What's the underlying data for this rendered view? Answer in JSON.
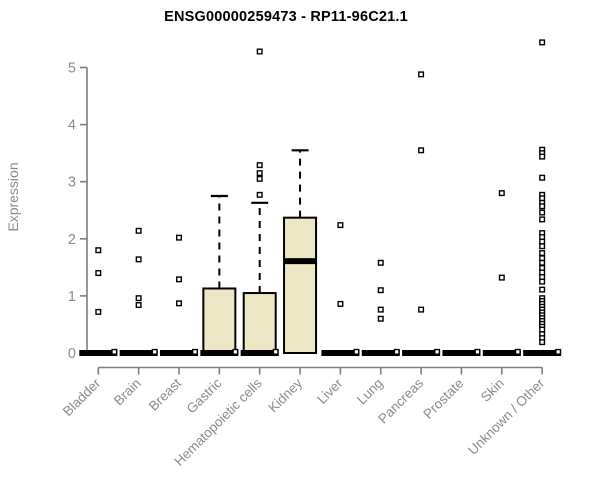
{
  "chart_data": {
    "type": "boxplot",
    "title": "ENSG00000259473 - RP11-96C21.1",
    "xlabel": "",
    "ylabel": "Expression",
    "ylim": [
      0,
      5.5
    ],
    "yticks": [
      0,
      1,
      2,
      3,
      4,
      5
    ],
    "grid": false,
    "legend": "none",
    "colors": {
      "box_fill": "#EDE7C5",
      "box_stroke": "#000000",
      "median": "#000000",
      "axis": "#7d7d7d",
      "tick_label": "#8b8b8b",
      "title": "#000000",
      "background": "#ffffff"
    },
    "categories": [
      "Bladder",
      "Brain",
      "Breast",
      "Gastric",
      "Hematopoietic cells",
      "Kidney",
      "Liver",
      "Lung",
      "Pancreas",
      "Prostate",
      "Skin",
      "Unknown / Other"
    ],
    "series": [
      {
        "category": "Bladder",
        "q1": 0,
        "median": 0,
        "q3": 0,
        "whisker_low": 0,
        "whisker_high": 0,
        "outliers": [
          1.8,
          1.4,
          0.72,
          0.02
        ]
      },
      {
        "category": "Brain",
        "q1": 0,
        "median": 0,
        "q3": 0,
        "whisker_low": 0,
        "whisker_high": 0,
        "outliers": [
          2.14,
          1.64,
          0.96,
          0.84,
          0.02
        ]
      },
      {
        "category": "Breast",
        "q1": 0,
        "median": 0,
        "q3": 0,
        "whisker_low": 0,
        "whisker_high": 0,
        "outliers": [
          2.02,
          1.29,
          0.87,
          0.02
        ]
      },
      {
        "category": "Gastric",
        "q1": 0,
        "median": 0,
        "q3": 1.13,
        "whisker_low": 0,
        "whisker_high": 2.75,
        "outliers": [
          0.02
        ]
      },
      {
        "category": "Hematopoietic cells",
        "q1": 0,
        "median": 0,
        "q3": 1.05,
        "whisker_low": 0,
        "whisker_high": 2.63,
        "outliers": [
          5.28,
          3.29,
          3.15,
          3.05,
          2.77,
          0.02
        ]
      },
      {
        "category": "Kidney",
        "q1": 0,
        "median": 1.61,
        "q3": 2.37,
        "whisker_low": 0,
        "whisker_high": 3.55,
        "outliers": []
      },
      {
        "category": "Liver",
        "q1": 0,
        "median": 0,
        "q3": 0,
        "whisker_low": 0,
        "whisker_high": 0,
        "outliers": [
          2.24,
          0.86,
          0.02
        ]
      },
      {
        "category": "Lung",
        "q1": 0,
        "median": 0,
        "q3": 0,
        "whisker_low": 0,
        "whisker_high": 0,
        "outliers": [
          1.58,
          1.1,
          0.76,
          0.6,
          0.02
        ]
      },
      {
        "category": "Pancreas",
        "q1": 0,
        "median": 0,
        "q3": 0,
        "whisker_low": 0,
        "whisker_high": 0,
        "outliers": [
          4.88,
          3.55,
          0.76,
          0.02
        ]
      },
      {
        "category": "Prostate",
        "q1": 0,
        "median": 0,
        "q3": 0,
        "whisker_low": 0,
        "whisker_high": 0,
        "outliers": [
          0.02
        ]
      },
      {
        "category": "Skin",
        "q1": 0,
        "median": 0,
        "q3": 0,
        "whisker_low": 0,
        "whisker_high": 0,
        "outliers": [
          2.8,
          1.32,
          0.02
        ]
      },
      {
        "category": "Unknown / Other",
        "q1": 0,
        "median": 0,
        "q3": 0,
        "whisker_low": 0,
        "whisker_high": 0,
        "outliers": [
          5.44,
          3.56,
          3.5,
          3.44,
          3.07,
          2.77,
          2.71,
          2.63,
          2.57,
          2.46,
          2.34,
          2.1,
          2.03,
          1.95,
          1.87,
          1.75,
          1.66,
          1.58,
          1.49,
          1.41,
          1.33,
          1.25,
          1.11,
          0.96,
          0.91,
          0.86,
          0.81,
          0.76,
          0.71,
          0.66,
          0.61,
          0.56,
          0.51,
          0.46,
          0.41,
          0.33,
          0.26,
          0.19,
          0.02
        ]
      }
    ]
  }
}
